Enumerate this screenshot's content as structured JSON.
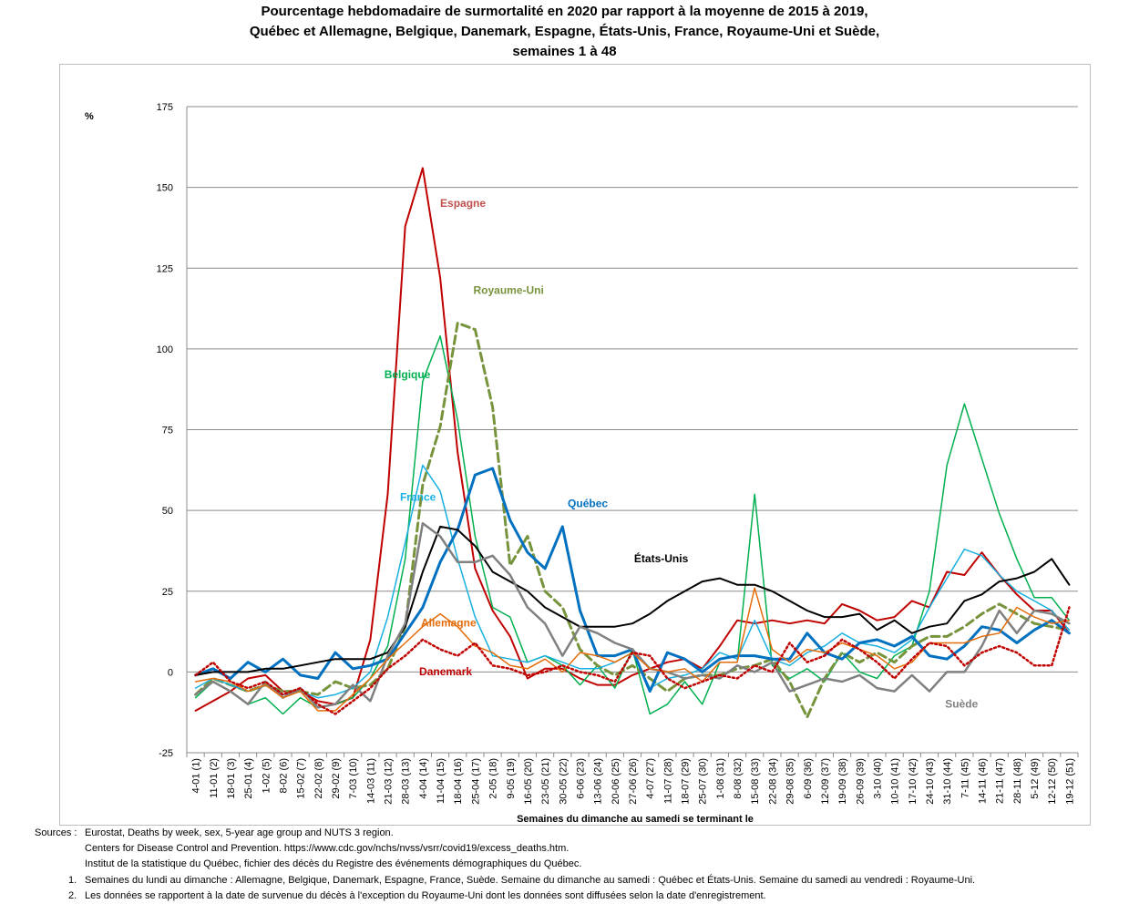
{
  "title": {
    "line1": "Pourcentage hebdomadaire de surmortalité en 2020 par rapport à la moyenne de 2015 à 2019,",
    "line2": "Québec et Allemagne, Belgique, Danemark, Espagne, États-Unis, France, Royaume-Uni et Suède,",
    "line3": "semaines 1 à 48"
  },
  "chart_data": {
    "type": "line",
    "ylabel": "%",
    "xlabel": "Semaines du dimanche  au samedi se terminant le",
    "ylim": [
      -25,
      175
    ],
    "yticks": [
      -25,
      0,
      25,
      50,
      75,
      100,
      125,
      150,
      175
    ],
    "grid": "horizontal",
    "legend": "inline labels",
    "categories": [
      "4-01 (1)",
      "11-01 (2)",
      "18-01 (3)",
      "25-01 (4)",
      "1-02 (5)",
      "8-02 (6)",
      "15-02 (7)",
      "22-02 (8)",
      "29-02 (9)",
      "7-03 (10)",
      "14-03 (11)",
      "21-03 (12)",
      "28-03 (13)",
      "4-04 (14)",
      "11-04 (15)",
      "18-04 (16)",
      "25-04 (17)",
      "2-05 (18)",
      "9-05 (19)",
      "16-05 (20)",
      "23-05 (21)",
      "30-05 (22)",
      "6-06 (23)",
      "13-06 (24)",
      "20-06 (25)",
      "27-06 (26)",
      "4-07 (27)",
      "11-07 (28)",
      "18-07 (29)",
      "25-07 (30)",
      "1-08 (31)",
      "8-08 (32)",
      "15-08 (33)",
      "22-08 (34)",
      "29-08 (35)",
      "6-09 (36)",
      "12-09 (37)",
      "19-09 (38)",
      "26-09 (39)",
      "3-10 (40)",
      "10-10 (41)",
      "17-10 (42)",
      "24-10 (43)",
      "31-10 (44)",
      "7-11 (45)",
      "14-11 (46)",
      "21-11 (47)",
      "28-11 (48)",
      "5-12 (49)",
      "12-12 (50)",
      "19-12 (51)"
    ],
    "series": [
      {
        "name": "Espagne",
        "color": "#c00000",
        "width": 2,
        "dash": "",
        "label": "Espagne",
        "labelColor": "#c0504d",
        "labelX": 14.5,
        "labelY": 144,
        "values": [
          -12,
          -9,
          -6,
          -2,
          -1,
          -6,
          -6,
          -9,
          -10,
          -8,
          10,
          55,
          138,
          156,
          122,
          68,
          32,
          19,
          11,
          -2,
          1,
          1,
          -2,
          -4,
          -4,
          -1,
          1,
          3,
          4,
          1,
          8,
          16,
          15,
          16,
          15,
          16,
          15,
          21,
          19,
          16,
          17,
          22,
          20,
          31,
          30,
          37,
          30,
          24,
          19,
          19,
          12
        ]
      },
      {
        "name": "Belgique",
        "color": "#00b050",
        "width": 1.5,
        "dash": "",
        "label": "Belgique",
        "labelColor": "#00b050",
        "labelX": 11.3,
        "labelY": 91,
        "values": [
          -8,
          -3,
          -6,
          -10,
          -8,
          -13,
          -8,
          -11,
          -10,
          -8,
          -2,
          8,
          35,
          90,
          104,
          78,
          42,
          20,
          17,
          3,
          5,
          2,
          -4,
          2,
          -5,
          7,
          -13,
          -10,
          -3,
          -10,
          3,
          3,
          55,
          2,
          -2,
          1,
          -3,
          6,
          0,
          -2,
          5,
          8,
          25,
          64,
          83,
          66,
          49,
          35,
          23,
          23,
          16
        ]
      },
      {
        "name": "Royaume-Uni",
        "color": "#77933c",
        "width": 3,
        "dash": "9,5",
        "label": "Royaume-Uni",
        "labelColor": "#77933c",
        "labelX": 16.4,
        "labelY": 117,
        "values": [
          -7,
          -2,
          -4,
          -6,
          -4,
          -6,
          -6,
          -7,
          -3,
          -5,
          -4,
          1,
          14,
          58,
          76,
          108,
          106,
          82,
          33,
          42,
          25,
          20,
          7,
          2,
          -1,
          2,
          -2,
          -6,
          -2,
          -1,
          -1,
          1,
          2,
          4,
          -3,
          -14,
          -2,
          6,
          3,
          6,
          3,
          8,
          11,
          11,
          14,
          18,
          21,
          18,
          15,
          14,
          13
        ]
      },
      {
        "name": "France",
        "color": "#17b0e0",
        "width": 1.5,
        "dash": "",
        "label": "France",
        "labelColor": "#17b0e0",
        "labelX": 12.2,
        "labelY": 53,
        "values": [
          -5,
          -2,
          -4,
          -6,
          -4,
          -7,
          -6,
          -8,
          -7,
          -5,
          0,
          17,
          40,
          64,
          56,
          35,
          17,
          5,
          4,
          3,
          5,
          3,
          1,
          1,
          3,
          6,
          -5,
          -2,
          -1,
          1,
          6,
          4,
          16,
          4,
          2,
          6,
          8,
          12,
          9,
          8,
          6,
          10,
          20,
          29,
          38,
          36,
          30,
          25,
          22,
          19,
          13
        ]
      },
      {
        "name": "Québec",
        "color": "#0070c0",
        "width": 3,
        "dash": "",
        "label": "Québec",
        "labelColor": "#0070c0",
        "labelX": 21.8,
        "labelY": 51,
        "values": [
          -1,
          1,
          -2,
          3,
          0,
          4,
          -1,
          -2,
          6,
          1,
          2,
          4,
          12,
          20,
          34,
          44,
          61,
          63,
          47,
          37,
          32,
          45,
          19,
          5,
          5,
          7,
          -6,
          6,
          4,
          0,
          4,
          5,
          5,
          4,
          4,
          12,
          6,
          4,
          9,
          10,
          8,
          11,
          5,
          4,
          8,
          14,
          13,
          9,
          13,
          16,
          12
        ]
      },
      {
        "name": "États-Unis",
        "color": "#000000",
        "width": 2,
        "dash": "",
        "label": "États-Unis",
        "labelColor": "#000000",
        "labelX": 25.6,
        "labelY": 34,
        "values": [
          -1,
          0,
          0,
          0,
          1,
          1,
          2,
          3,
          4,
          4,
          4,
          6,
          14,
          31,
          45,
          44,
          39,
          31,
          28,
          25,
          20,
          17,
          14,
          14,
          14,
          15,
          18,
          22,
          25,
          28,
          29,
          27,
          27,
          25,
          22,
          19,
          17,
          17,
          18,
          13,
          16,
          12,
          14,
          15,
          22,
          24,
          28,
          29,
          31,
          35,
          27
        ]
      },
      {
        "name": "Suède",
        "color": "#808080",
        "width": 2.5,
        "dash": "",
        "label": "Suède",
        "labelColor": "#808080",
        "labelX": 43.4,
        "labelY": -11,
        "values": [
          -7,
          -3,
          -6,
          -10,
          -3,
          -8,
          -5,
          -11,
          -10,
          -4,
          -9,
          5,
          15,
          46,
          42,
          34,
          34,
          36,
          30,
          20,
          15,
          5,
          14,
          12,
          9,
          7,
          1,
          0,
          -2,
          -1,
          -2,
          2,
          0,
          3,
          -6,
          -4,
          -2,
          -3,
          -1,
          -5,
          -6,
          -1,
          -6,
          0,
          0,
          8,
          19,
          12,
          19,
          18,
          15
        ]
      },
      {
        "name": "Allemagne",
        "color": "#e46c0a",
        "width": 1.5,
        "dash": "",
        "label": "Allemagne",
        "labelColor": "#e46c0a",
        "labelX": 13.4,
        "labelY": 14,
        "values": [
          -3,
          -2,
          -3,
          -6,
          -4,
          -8,
          -6,
          -12,
          -12,
          -7,
          -2,
          4,
          9,
          14,
          18,
          14,
          8,
          6,
          2,
          1,
          4,
          0,
          6,
          5,
          3,
          6,
          1,
          0,
          1,
          -3,
          3,
          3,
          26,
          7,
          3,
          7,
          6,
          9,
          7,
          5,
          1,
          3,
          9,
          9,
          9,
          11,
          12,
          20,
          17,
          15,
          16
        ]
      },
      {
        "name": "Danemark",
        "color": "#c00000",
        "width": 2.5,
        "dash": "2,3",
        "label": "Danemark",
        "labelColor": "#c00000",
        "labelX": 13.3,
        "labelY": -1,
        "values": [
          -1,
          3,
          -3,
          -5,
          -3,
          -7,
          -5,
          -10,
          -13,
          -9,
          -5,
          1,
          5,
          10,
          7,
          5,
          9,
          2,
          1,
          -1,
          0,
          2,
          0,
          -1,
          -3,
          6,
          5,
          -2,
          -5,
          -3,
          -1,
          -2,
          2,
          0,
          9,
          3,
          5,
          10,
          7,
          3,
          -2,
          4,
          9,
          8,
          2,
          6,
          8,
          6,
          2,
          2,
          20
        ]
      }
    ]
  },
  "notes": {
    "sources_label": "Sources :",
    "source1": "Eurostat, Deaths by week, sex, 5-year age group and NUTS 3 region.",
    "source2": "Centers for Disease Control and Prevention. https://www.cdc.gov/nchs/nvss/vsrr/covid19/excess_deaths.htm.",
    "source3": "Institut de la statistique du Québec, fichier des décès du Registre des événements démographiques du Québec.",
    "note1_num": "1.",
    "note1": "Semaines du lundi au dimanche : Allemagne, Belgique, Danemark, Espagne, France, Suède. Semaine du dimanche au samedi : Québec et États-Unis. Semaine du samedi au vendredi : Royaume-Uni.",
    "note2_num": "2.",
    "note2": "Les données se rapportent à la date de survenue du décès à l'exception du Royaume-Uni dont les données sont diffusées selon la date d'enregistrement."
  }
}
